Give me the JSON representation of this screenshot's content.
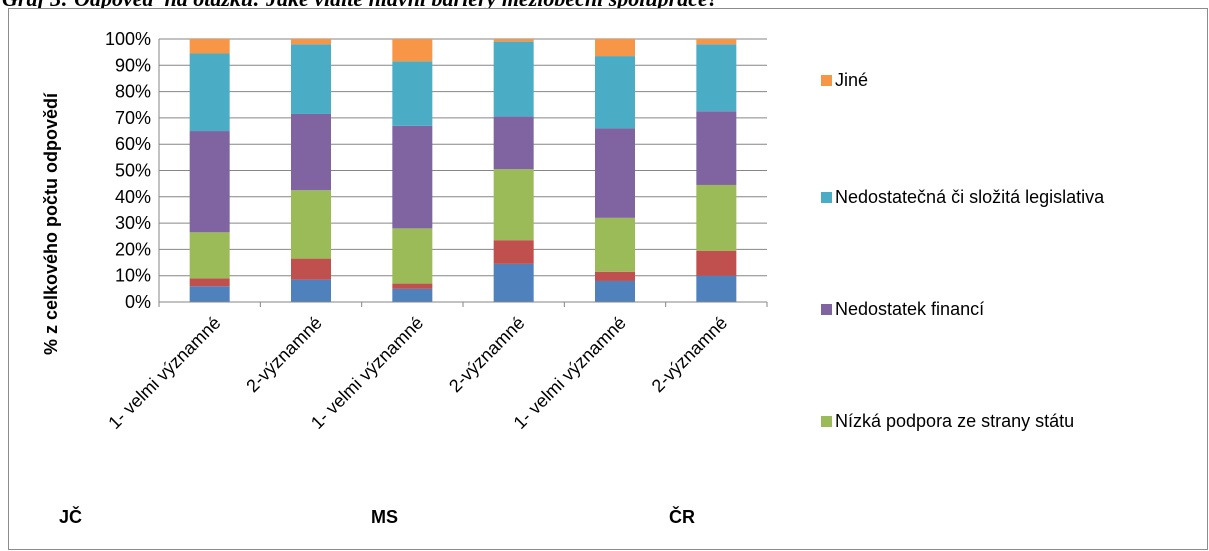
{
  "caption": "Graf 3: Odpověď na otázku: Jaké vidíte hlavní bariéry meziobecní spolupráce?",
  "chart_data": {
    "type": "bar",
    "stacked": true,
    "ylabel": "% z celkového počtu odpovědí",
    "ylim": [
      0,
      100
    ],
    "y_ticks": [
      "0%",
      "10%",
      "20%",
      "30%",
      "40%",
      "50%",
      "60%",
      "70%",
      "80%",
      "90%",
      "100%"
    ],
    "grid": true,
    "legend_position": "right",
    "categories": [
      "1- velmi významné",
      "2-významné",
      "1- velmi významné",
      "2-významné",
      "1- velmi významné",
      "2-významné"
    ],
    "groups": [
      {
        "label": "JČ",
        "categories": [
          0,
          1
        ]
      },
      {
        "label": "MS",
        "categories": [
          2,
          3
        ]
      },
      {
        "label": "ČR",
        "categories": [
          4,
          5
        ]
      }
    ],
    "series": [
      {
        "values": [
          6,
          8.5,
          5,
          14.5,
          8,
          10
        ],
        "color": "#4f81bd"
      },
      {
        "values": [
          3,
          8,
          2,
          9,
          3.5,
          9.5
        ],
        "color": "#c0504d"
      },
      {
        "name": "Nízká podpora ze strany státu",
        "values": [
          17.5,
          26,
          21,
          27,
          20.5,
          25
        ],
        "color": "#9bbb59"
      },
      {
        "name": "Nedostatek financí",
        "values": [
          38.5,
          29,
          39,
          20,
          34,
          28
        ],
        "color": "#8064a2"
      },
      {
        "name": "Nedostatečná či složitá legislativa",
        "values": [
          29.5,
          26.5,
          24.5,
          28.5,
          27.5,
          25.5
        ],
        "color": "#4bacc6"
      },
      {
        "name": "Jiné",
        "values": [
          5.5,
          2,
          8.5,
          1,
          6.5,
          2
        ],
        "color": "#f79646"
      }
    ],
    "legend": [
      {
        "label": "Jiné",
        "color": "#f79646"
      },
      {
        "label": "Nedostatečná či složitá legislativa",
        "color": "#4bacc6"
      },
      {
        "label": "Nedostatek financí",
        "color": "#8064a2"
      },
      {
        "label": "Nízká podpora ze strany státu",
        "color": "#9bbb59"
      }
    ]
  }
}
